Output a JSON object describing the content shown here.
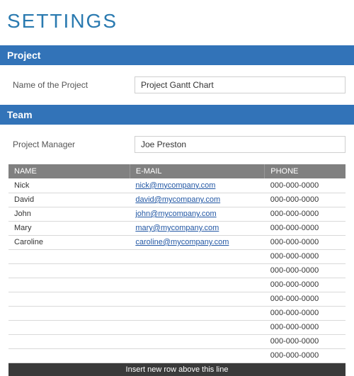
{
  "title": "SETTINGS",
  "sections": {
    "project": {
      "heading": "Project",
      "field_label": "Name of the Project",
      "field_value": "Project Gantt Chart"
    },
    "team": {
      "heading": "Team",
      "manager_label": "Project Manager",
      "manager_value": "Joe Preston",
      "columns": {
        "name": "NAME",
        "email": "E-MAIL",
        "phone": "PHONE"
      },
      "rows": [
        {
          "name": "Nick",
          "email": "nick@mycompany.com",
          "phone": "000-000-0000"
        },
        {
          "name": "David",
          "email": "david@mycompany.com",
          "phone": "000-000-0000"
        },
        {
          "name": "John",
          "email": "john@mycompany.com",
          "phone": "000-000-0000"
        },
        {
          "name": "Mary",
          "email": "mary@mycompany.com",
          "phone": "000-000-0000"
        },
        {
          "name": "Caroline",
          "email": "caroline@mycompany.com",
          "phone": "000-000-0000"
        },
        {
          "name": "",
          "email": "",
          "phone": "000-000-0000"
        },
        {
          "name": "",
          "email": "",
          "phone": "000-000-0000"
        },
        {
          "name": "",
          "email": "",
          "phone": "000-000-0000"
        },
        {
          "name": "",
          "email": "",
          "phone": "000-000-0000"
        },
        {
          "name": "",
          "email": "",
          "phone": "000-000-0000"
        },
        {
          "name": "",
          "email": "",
          "phone": "000-000-0000"
        },
        {
          "name": "",
          "email": "",
          "phone": "000-000-0000"
        },
        {
          "name": "",
          "email": "",
          "phone": "000-000-0000"
        }
      ],
      "footer": "Insert new row above this line"
    }
  },
  "colors": {
    "title": "#2a7ab0",
    "section_bar": "#3273b8",
    "table_header": "#808080",
    "footer_bar": "#3a3a3a",
    "link": "#2257a4",
    "grid_line": "#d9d9d9",
    "input_border": "#cfcfcf"
  }
}
